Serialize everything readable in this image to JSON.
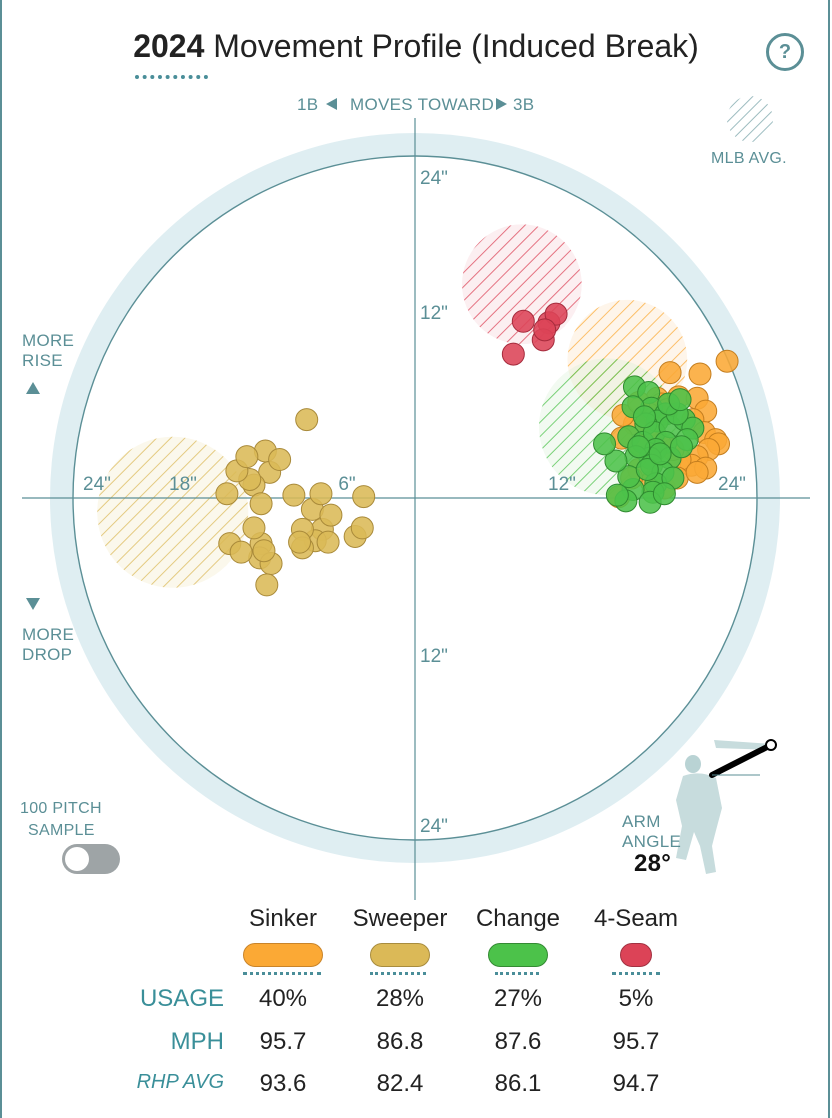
{
  "title": {
    "year": "2024",
    "text": "Movement Profile (Induced Break)"
  },
  "help_label": "?",
  "direction": {
    "left": "1B",
    "middle": "MOVES TOWARD",
    "right": "3B"
  },
  "legend_avg_label": "MLB AVG.",
  "more_rise": [
    "MORE",
    "RISE"
  ],
  "more_drop": [
    "MORE",
    "DROP"
  ],
  "sample_label": [
    "100 PITCH",
    "SAMPLE"
  ],
  "sample_toggle_on": false,
  "arm_angle": {
    "label": [
      "ARM",
      "ANGLE"
    ],
    "value": "28°"
  },
  "colors": {
    "sinker": "#fba935",
    "sweeper": "#dbb957",
    "change": "#4cc24a",
    "fourseam": "#dc4357",
    "accent": "#4a8e99",
    "ring_fill": "#dfeef2"
  },
  "chart_data": {
    "type": "scatter",
    "xlabel": "",
    "ylabel": "",
    "units": "inches",
    "rings": [
      6,
      12,
      18,
      24
    ],
    "ring_labels": {
      "top": [
        "24\"",
        "12\""
      ],
      "bottom": [
        "12\"",
        "24\""
      ],
      "left": [
        "24\"",
        "18\"",
        "6\""
      ],
      "right": [
        "12\"",
        "24\""
      ]
    },
    "mlb_avg": [
      {
        "pitch": "Sweeper",
        "x": -17,
        "y": -1,
        "r": 5.3
      },
      {
        "pitch": "4-Seam",
        "x": 7.5,
        "y": 15,
        "r": 4.2
      },
      {
        "pitch": "Sinker",
        "x": 14.9,
        "y": 9.7,
        "r": 4.2
      },
      {
        "pitch": "Change",
        "x": 13.5,
        "y": 5,
        "r": 4.8
      }
    ],
    "series": [
      {
        "name": "Sinker",
        "color": "#fba935",
        "points": [
          [
            17,
            7
          ],
          [
            17.9,
            8.8
          ],
          [
            17.3,
            6.6
          ],
          [
            16.4,
            5.9
          ],
          [
            17.7,
            6.2
          ],
          [
            18.5,
            7.1
          ],
          [
            20,
            8.7
          ],
          [
            19.8,
            7
          ],
          [
            20.4,
            6.1
          ],
          [
            19.5,
            5.5
          ],
          [
            20.3,
            4.6
          ],
          [
            21.1,
            4.1
          ],
          [
            21.3,
            3.8
          ],
          [
            20.6,
            3.4
          ],
          [
            19.8,
            2.9
          ],
          [
            19.4,
            2.3
          ],
          [
            18.6,
            2.7
          ],
          [
            18.1,
            3.4
          ],
          [
            17.2,
            3.8
          ],
          [
            16.7,
            4.5
          ],
          [
            15.8,
            3.7
          ],
          [
            15.4,
            5.2
          ],
          [
            14.6,
            5.8
          ],
          [
            14.5,
            4.2
          ],
          [
            15.7,
            2
          ],
          [
            16.6,
            1.1
          ],
          [
            17.5,
            0.7
          ],
          [
            15.2,
            1.4
          ],
          [
            14.3,
            0.1
          ],
          [
            20.4,
            2.1
          ],
          [
            18.4,
            1.4
          ],
          [
            19.8,
            1.8
          ],
          [
            15.7,
            6.7
          ],
          [
            21.9,
            9.6
          ]
        ]
      },
      {
        "name": "Sweeper",
        "color": "#dbb957",
        "points": [
          [
            -7.6,
            5.5
          ],
          [
            -10.5,
            3.3
          ],
          [
            -10.2,
            1.8
          ],
          [
            -11.3,
            0.9
          ],
          [
            -8.5,
            0.2
          ],
          [
            -7.2,
            -0.8
          ],
          [
            -6.6,
            0.3
          ],
          [
            -6.5,
            -2.2
          ],
          [
            -5.9,
            -1.2
          ],
          [
            -4.2,
            -2.7
          ],
          [
            -3.6,
            0.1
          ],
          [
            -3.7,
            -2.1
          ],
          [
            -7,
            -3
          ],
          [
            -7.9,
            -2.2
          ],
          [
            -7.9,
            -3.5
          ],
          [
            -10.8,
            -0.4
          ],
          [
            -11.6,
            1.3
          ],
          [
            -12.5,
            1.9
          ],
          [
            -13.2,
            0.3
          ],
          [
            -10.8,
            -3.2
          ],
          [
            -11.3,
            -2.1
          ],
          [
            -10.9,
            -4.2
          ],
          [
            -10.1,
            -4.6
          ],
          [
            -10.4,
            -6.1
          ],
          [
            -13,
            -3.2
          ],
          [
            -12.2,
            -3.8
          ],
          [
            -10.6,
            -3.7
          ],
          [
            -8.1,
            -3.1
          ],
          [
            -6.1,
            -3.1
          ],
          [
            -9.5,
            2.7
          ],
          [
            -11.8,
            2.9
          ]
        ]
      },
      {
        "name": "Change",
        "color": "#4cc24a",
        "points": [
          [
            15.4,
            7.8
          ],
          [
            16.4,
            7.4
          ],
          [
            16.6,
            6.3
          ],
          [
            17.6,
            5.9
          ],
          [
            17,
            5.4
          ],
          [
            16.2,
            5.2
          ],
          [
            15,
            4.3
          ],
          [
            16,
            3.9
          ],
          [
            16.8,
            4.6
          ],
          [
            17.9,
            5
          ],
          [
            18.9,
            5.5
          ],
          [
            19.5,
            4.9
          ],
          [
            19.1,
            4.1
          ],
          [
            17.6,
            3.9
          ],
          [
            16.9,
            3.4
          ],
          [
            17.9,
            2.8
          ],
          [
            16.5,
            2.8
          ],
          [
            15.5,
            2.9
          ],
          [
            16.6,
            2.3
          ],
          [
            17.4,
            1.8
          ],
          [
            16.9,
            1
          ],
          [
            16.7,
            0.4
          ],
          [
            15.3,
            0.6
          ],
          [
            15,
            1.5
          ],
          [
            14.1,
            2.6
          ],
          [
            13.3,
            3.8
          ],
          [
            14.8,
            -0.2
          ],
          [
            14.2,
            0.2
          ],
          [
            18.1,
            1.4
          ],
          [
            16.5,
            -0.3
          ],
          [
            18.4,
            5.9
          ],
          [
            17.8,
            6.6
          ],
          [
            18.6,
            6.9
          ],
          [
            15.7,
            3.6
          ],
          [
            16.3,
            2
          ],
          [
            18.7,
            3.6
          ],
          [
            15.3,
            6.4
          ],
          [
            16.1,
            5.7
          ],
          [
            17.2,
            3.1
          ],
          [
            17.5,
            0.3
          ]
        ]
      },
      {
        "name": "4-Seam",
        "color": "#dc4357",
        "points": [
          [
            7.6,
            12.4
          ],
          [
            9.4,
            12.3
          ],
          [
            9.9,
            12.9
          ],
          [
            9,
            11.1
          ],
          [
            6.9,
            10.1
          ],
          [
            9.1,
            11.8
          ]
        ]
      }
    ]
  },
  "table": {
    "pitches": [
      "Sinker",
      "Sweeper",
      "Change",
      "4-Seam"
    ],
    "rows": [
      {
        "label": "USAGE",
        "italic": false,
        "values": [
          "40%",
          "28%",
          "27%",
          "5%"
        ]
      },
      {
        "label": "MPH",
        "italic": false,
        "values": [
          "95.7",
          "86.8",
          "87.6",
          "95.7"
        ]
      },
      {
        "label": "RHP AVG",
        "italic": true,
        "values": [
          "93.6",
          "82.4",
          "86.1",
          "94.7"
        ]
      }
    ]
  }
}
